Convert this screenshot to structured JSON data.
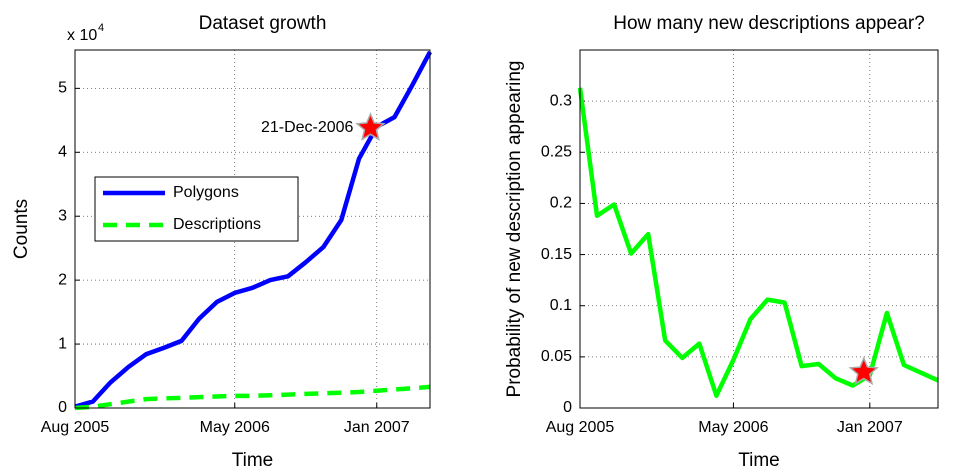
{
  "chart_data": [
    {
      "type": "line",
      "title": "Dataset growth",
      "xlabel": "Time",
      "ylabel": "Counts",
      "y_multiplier": {
        "base": "x 10",
        "exponent": "4"
      },
      "x": [
        "2005-08",
        "2005-09",
        "2005-10",
        "2005-11",
        "2005-12",
        "2006-01",
        "2006-02",
        "2006-03",
        "2006-04",
        "2006-05",
        "2006-06",
        "2006-07",
        "2006-08",
        "2006-09",
        "2006-10",
        "2006-11",
        "2006-12",
        "2007-01",
        "2007-02",
        "2007-03",
        "2007-04"
      ],
      "series": [
        {
          "name": "Polygons",
          "color": "#0000ff",
          "dash": false,
          "values": [
            0.02,
            0.1,
            0.4,
            0.64,
            0.84,
            0.94,
            1.05,
            1.4,
            1.66,
            1.8,
            1.88,
            2.0,
            2.06,
            2.28,
            2.52,
            2.94,
            3.9,
            4.4,
            4.55,
            5.05,
            5.57
          ]
        },
        {
          "name": "Descriptions",
          "color": "#00ff00",
          "dash": true,
          "values": [
            0,
            0.02,
            0.06,
            0.1,
            0.14,
            0.15,
            0.16,
            0.17,
            0.18,
            0.19,
            0.19,
            0.2,
            0.21,
            0.22,
            0.23,
            0.24,
            0.25,
            0.27,
            0.29,
            0.31,
            0.33
          ]
        }
      ],
      "annotation": {
        "text": "21-Dec-2006",
        "x": "2006-12-21",
        "y": 4.38,
        "color": "#ff0000"
      },
      "xlim": [
        "2005-08",
        "2007-04"
      ],
      "xticks": [
        {
          "value": "2005-08",
          "label": "Aug 2005"
        },
        {
          "value": "2006-05",
          "label": "May 2006"
        },
        {
          "value": "2007-01",
          "label": "Jan 2007"
        }
      ],
      "ylim": [
        0,
        5.6
      ],
      "yticks": [
        0,
        1,
        2,
        3,
        4,
        5
      ],
      "grid": true,
      "legend": "center left"
    },
    {
      "type": "line",
      "title": "How many new descriptions appear?",
      "xlabel": "Time",
      "ylabel": "Probability of new description appearing",
      "x": [
        "2005-08",
        "2005-09",
        "2005-10",
        "2005-11",
        "2005-12",
        "2006-01",
        "2006-02",
        "2006-03",
        "2006-04",
        "2006-05",
        "2006-06",
        "2006-07",
        "2006-08",
        "2006-09",
        "2006-10",
        "2006-11",
        "2006-12",
        "2007-01",
        "2007-02",
        "2007-03",
        "2007-05"
      ],
      "series": [
        {
          "color": "#00ff00",
          "dash": false,
          "values": [
            0.313,
            0.188,
            0.199,
            0.151,
            0.17,
            0.066,
            0.049,
            0.063,
            0.012,
            0.047,
            0.087,
            0.106,
            0.103,
            0.041,
            0.043,
            0.029,
            0.022,
            0.032,
            0.093,
            0.042,
            0.027
          ]
        }
      ],
      "annotation": {
        "x": "2006-12-21",
        "y": 0.035,
        "color": "#ff0000"
      },
      "xlim": [
        "2005-08",
        "2007-05"
      ],
      "xticks": [
        {
          "value": "2005-08",
          "label": "Aug 2005"
        },
        {
          "value": "2006-05",
          "label": "May 2006"
        },
        {
          "value": "2007-01",
          "label": "Jan 2007"
        }
      ],
      "ylim": [
        0,
        0.35
      ],
      "yticks": [
        0,
        0.05,
        0.1,
        0.15,
        0.2,
        0.25,
        0.3
      ],
      "grid": true
    }
  ]
}
